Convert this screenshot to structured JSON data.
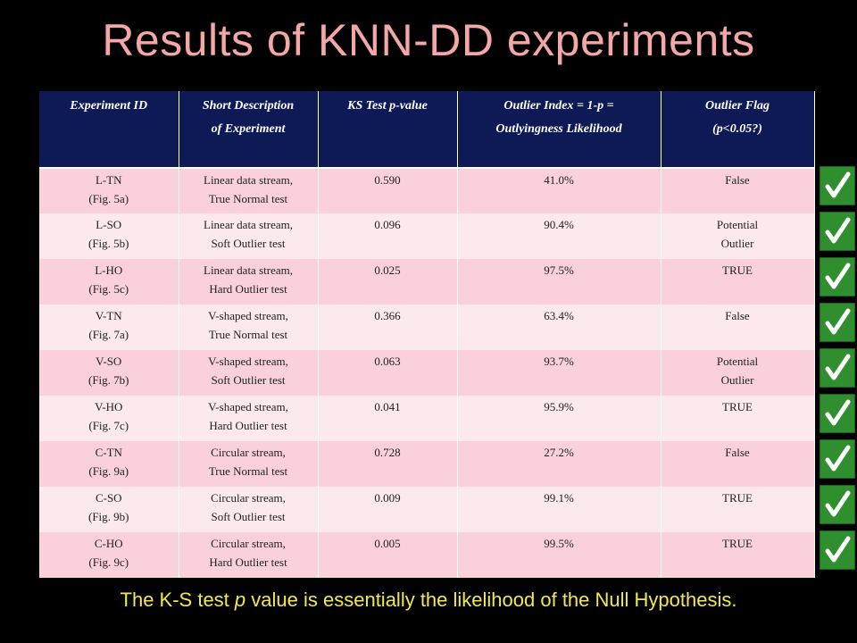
{
  "title": "Results of KNN-DD experiments",
  "table": {
    "headers": [
      {
        "line1": "Experiment ID",
        "line2": ""
      },
      {
        "line1": "Short Description",
        "line2": "of Experiment"
      },
      {
        "line1": "KS Test p-value",
        "line2": ""
      },
      {
        "line1": "Outlier Index = 1-p =",
        "line2": "Outlyingness Likelihood"
      },
      {
        "line1": "Outlier Flag",
        "line2": "(p<0.05?)"
      }
    ],
    "rows": [
      {
        "id": "L-TN",
        "fig": "(Fig. 5a)",
        "desc1": "Linear data stream,",
        "desc2": "True Normal test",
        "p": "0.590",
        "index": "41.0%",
        "flag1": "False",
        "flag2": ""
      },
      {
        "id": "L-SO",
        "fig": "(Fig. 5b)",
        "desc1": "Linear data stream,",
        "desc2": "Soft Outlier test",
        "p": "0.096",
        "index": "90.4%",
        "flag1": "Potential",
        "flag2": "Outlier"
      },
      {
        "id": "L-HO",
        "fig": "(Fig. 5c)",
        "desc1": "Linear data stream,",
        "desc2": "Hard Outlier test",
        "p": "0.025",
        "index": "97.5%",
        "flag1": "TRUE",
        "flag2": ""
      },
      {
        "id": "V-TN",
        "fig": "(Fig. 7a)",
        "desc1": "V-shaped stream,",
        "desc2": "True Normal test",
        "p": "0.366",
        "index": "63.4%",
        "flag1": "False",
        "flag2": ""
      },
      {
        "id": "V-SO",
        "fig": "(Fig. 7b)",
        "desc1": "V-shaped stream,",
        "desc2": "Soft Outlier test",
        "p": "0.063",
        "index": "93.7%",
        "flag1": "Potential",
        "flag2": "Outlier"
      },
      {
        "id": "V-HO",
        "fig": "(Fig. 7c)",
        "desc1": "V-shaped stream,",
        "desc2": "Hard Outlier test",
        "p": "0.041",
        "index": "95.9%",
        "flag1": "TRUE",
        "flag2": ""
      },
      {
        "id": "C-TN",
        "fig": "(Fig. 9a)",
        "desc1": "Circular stream,",
        "desc2": "True Normal test",
        "p": "0.728",
        "index": "27.2%",
        "flag1": "False",
        "flag2": ""
      },
      {
        "id": "C-SO",
        "fig": "(Fig. 9b)",
        "desc1": "Circular stream,",
        "desc2": "Soft Outlier test",
        "p": "0.009",
        "index": "99.1%",
        "flag1": "TRUE",
        "flag2": ""
      },
      {
        "id": "C-HO",
        "fig": "(Fig. 9c)",
        "desc1": "Circular stream,",
        "desc2": "Hard Outlier test",
        "p": "0.005",
        "index": "99.5%",
        "flag1": "TRUE",
        "flag2": ""
      }
    ]
  },
  "checkmarks": {
    "count": 9,
    "icon": "checkmark-icon",
    "color": "#2f8f2f"
  },
  "footer": {
    "before": "The K-S test ",
    "italic": "p",
    "after": " value is essentially the likelihood of the Null Hypothesis."
  },
  "colors": {
    "title": "#f4a7a7",
    "header_bg": "#0e1a55",
    "row_odd": "#fad0da",
    "row_even": "#fbe9ee",
    "footer": "#f2e94e"
  }
}
